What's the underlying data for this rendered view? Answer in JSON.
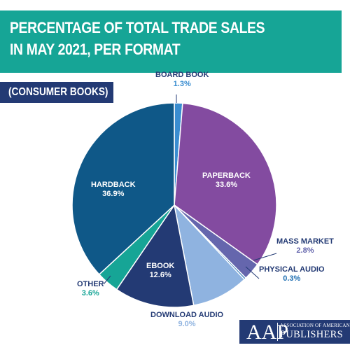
{
  "title": {
    "line1": "PERCENTAGE OF TOTAL TRADE SALES",
    "line2": "IN MAY 2021, PER FORMAT"
  },
  "subtitle": "(CONSUMER BOOKS)",
  "colors": {
    "title_banner": "#16a596",
    "subtitle_box": "#233a74",
    "label_dark": "#233a74",
    "label_light": "#ffffff"
  },
  "chart_data": {
    "type": "pie",
    "title": "PERCENTAGE OF TOTAL TRADE SALES IN MAY 2021, PER FORMAT",
    "subtitle": "(CONSUMER BOOKS)",
    "slices": [
      {
        "name": "BOARD BOOK",
        "value": 1.3,
        "label": "1.3%",
        "color": "#3a8dd0",
        "pct_color": "#3a8dd0"
      },
      {
        "name": "PAPERBACK",
        "value": 33.6,
        "label": "33.6%",
        "color": "#834ba0",
        "pct_color": "#ffffff"
      },
      {
        "name": "MASS MARKET",
        "value": 2.8,
        "label": "2.8%",
        "color": "#6566ad",
        "pct_color": "#6566ad"
      },
      {
        "name": "PHYSICAL AUDIO",
        "value": 0.3,
        "label": "0.3%",
        "color": "#1f6fb2",
        "pct_color": "#1f6fb2"
      },
      {
        "name": "DOWNLOAD AUDIO",
        "value": 9.0,
        "label": "9.0%",
        "color": "#8fb3e0",
        "pct_color": "#8fb3e0"
      },
      {
        "name": "EBOOK",
        "value": 12.6,
        "label": "12.6%",
        "color": "#233a74",
        "pct_color": "#ffffff"
      },
      {
        "name": "OTHER",
        "value": 3.6,
        "label": "3.6%",
        "color": "#16a596",
        "pct_color": "#16a596"
      },
      {
        "name": "HARDBACK",
        "value": 36.9,
        "label": "36.9%",
        "color": "#0f5888",
        "pct_color": "#ffffff"
      }
    ],
    "start": "top",
    "direction": "clockwise",
    "legend": "none"
  },
  "logo": {
    "abbr": "AAP",
    "name_small": "ASSOCIATION OF AMERICAN",
    "name_big": "PUBLISHERS"
  }
}
